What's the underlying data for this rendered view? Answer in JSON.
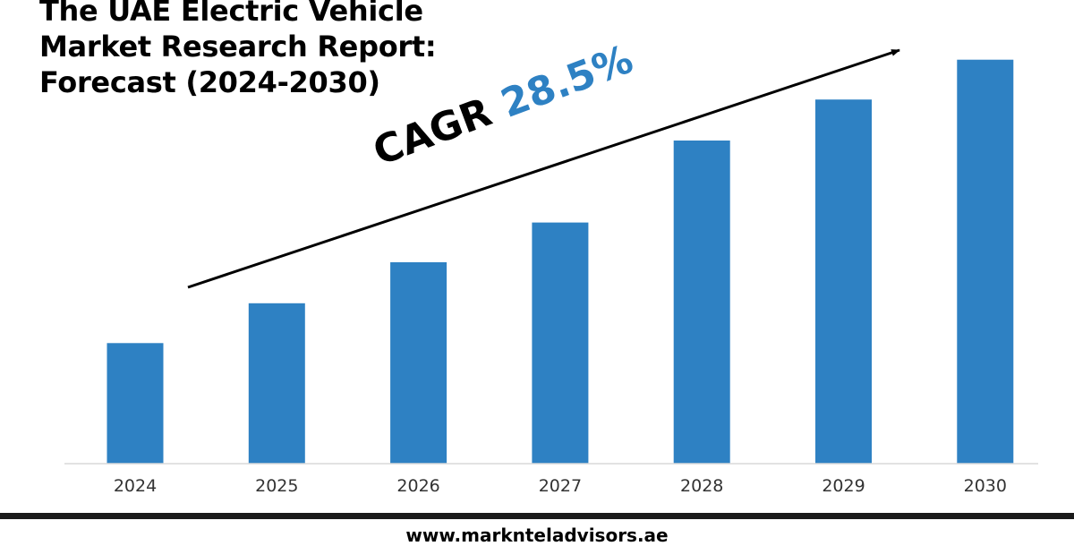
{
  "title_lines": [
    "The UAE Electric Vehicle",
    "Market Research Report:",
    "Forecast (2024-2030)"
  ],
  "cagr": {
    "label": "CAGR",
    "value": "28.5%"
  },
  "footer": {
    "url": "www.marknteladvisors.ae"
  },
  "colors": {
    "bar": "#2e81c3",
    "accent": "#2e81c3",
    "text": "#000000",
    "tick": "#333333"
  },
  "chart_data": {
    "type": "bar",
    "title": "The UAE Electric Vehicle Market Research Report: Forecast (2024-2030)",
    "categories": [
      "2024",
      "2025",
      "2026",
      "2027",
      "2028",
      "2029",
      "2030"
    ],
    "values": [
      1.0,
      1.33,
      1.67,
      2.0,
      2.68,
      3.02,
      3.35
    ],
    "value_note": "relative bar heights, no y-axis values shown",
    "ylim": [
      0,
      3.4
    ],
    "xlabel": "",
    "ylabel": "",
    "annotations": [
      "CAGR 28.5%"
    ],
    "grid": false
  }
}
